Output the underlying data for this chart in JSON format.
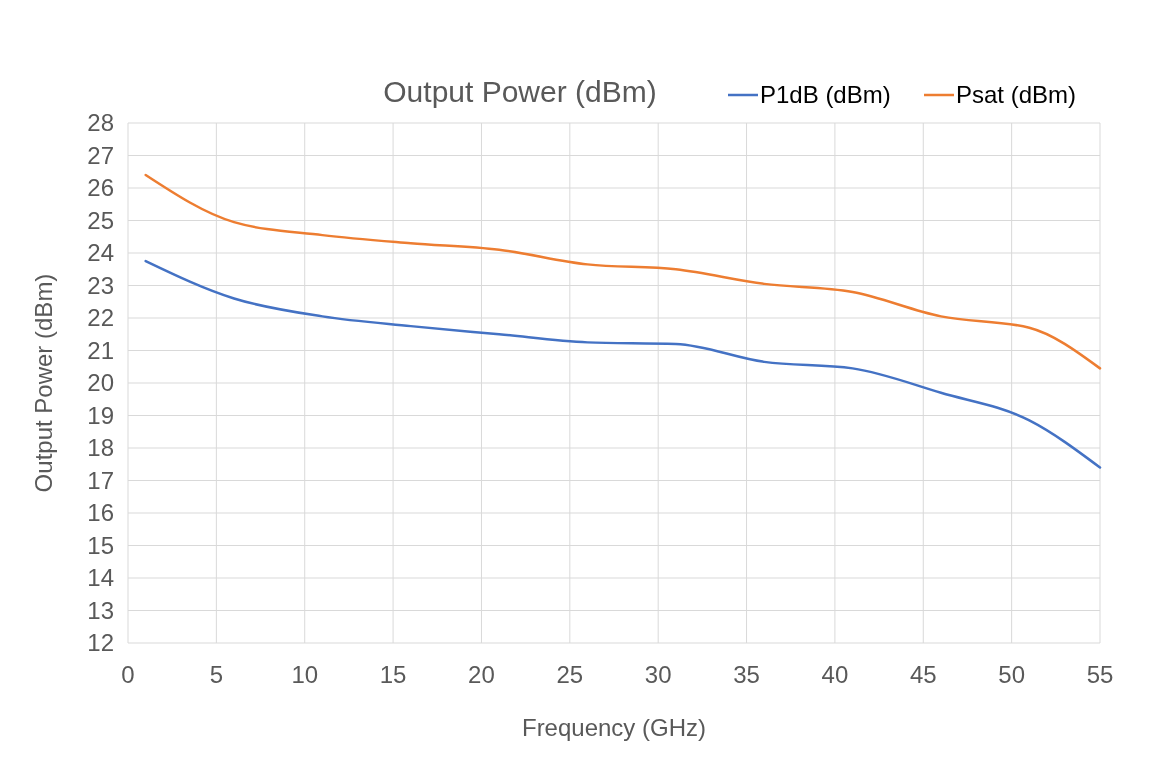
{
  "chart_data": {
    "type": "line",
    "title": "Output Power (dBm)",
    "xlabel": "Frequency (GHz)",
    "ylabel": "Output Power (dBm)",
    "x": [
      1,
      6,
      11,
      16,
      21,
      26,
      31,
      36,
      41,
      46,
      51,
      55
    ],
    "series": [
      {
        "name": "P1dB (dBm)",
        "color": "#4472c4",
        "values": [
          23.75,
          22.6,
          22.05,
          21.75,
          21.5,
          21.25,
          21.2,
          20.65,
          20.45,
          19.7,
          18.85,
          17.4
        ]
      },
      {
        "name": "Psat (dBm)",
        "color": "#ed7d31",
        "values": [
          26.4,
          24.95,
          24.55,
          24.3,
          24.1,
          23.65,
          23.5,
          23.05,
          22.8,
          22.05,
          21.7,
          20.45
        ]
      }
    ],
    "xlim": [
      0,
      55
    ],
    "xticks": [
      0,
      5,
      10,
      15,
      20,
      25,
      30,
      35,
      40,
      45,
      50,
      55
    ],
    "ylim": [
      12,
      28
    ],
    "yticks": [
      12,
      13,
      14,
      15,
      16,
      17,
      18,
      19,
      20,
      21,
      22,
      23,
      24,
      25,
      26,
      27,
      28
    ],
    "grid": true,
    "legend": "top right"
  }
}
